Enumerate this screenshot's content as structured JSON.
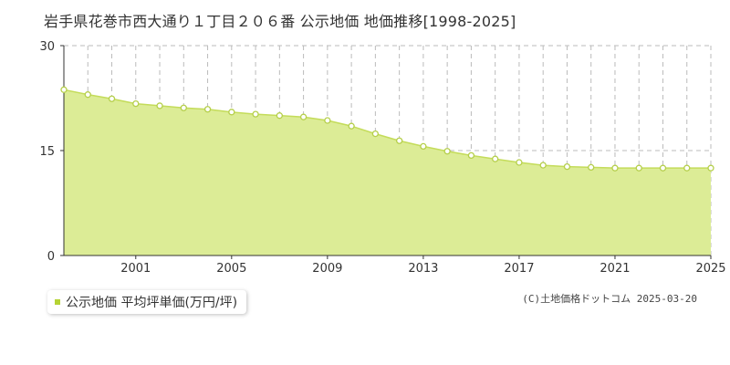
{
  "title": "岩手県花巻市西大通り１丁目２０６番 公示地価 地価推移[1998-2025]",
  "legend": {
    "label": "公示地価 平均坪単価(万円/坪)"
  },
  "copyright": "(C)土地価格ドットコム 2025-03-20",
  "colors": {
    "area_fill": "#dcec96",
    "line": "#c4dc5a",
    "marker_stroke": "#b5cf4a",
    "marker_fill": "#ffffff",
    "legend_swatch": "#b5d334",
    "grid_line": "#bbbbbb"
  },
  "chart_data": {
    "type": "area",
    "ylim": [
      0,
      30
    ],
    "yticks": [
      0,
      15,
      30
    ],
    "xlim": [
      1998,
      2025
    ],
    "xticks": [
      2001,
      2005,
      2009,
      2013,
      2017,
      2021,
      2025
    ],
    "grid": true,
    "x": [
      1998,
      1999,
      2000,
      2001,
      2002,
      2003,
      2004,
      2005,
      2006,
      2007,
      2008,
      2009,
      2010,
      2011,
      2012,
      2013,
      2014,
      2015,
      2016,
      2017,
      2018,
      2019,
      2020,
      2021,
      2022,
      2023,
      2024,
      2025
    ],
    "series": [
      {
        "name": "公示地価 平均坪単価(万円/坪)",
        "values": [
          23.7,
          23.0,
          22.4,
          21.7,
          21.4,
          21.1,
          20.9,
          20.5,
          20.2,
          20.0,
          19.8,
          19.3,
          18.5,
          17.4,
          16.4,
          15.6,
          14.9,
          14.3,
          13.8,
          13.3,
          12.9,
          12.7,
          12.6,
          12.5,
          12.5,
          12.5,
          12.5,
          12.5
        ]
      }
    ]
  }
}
